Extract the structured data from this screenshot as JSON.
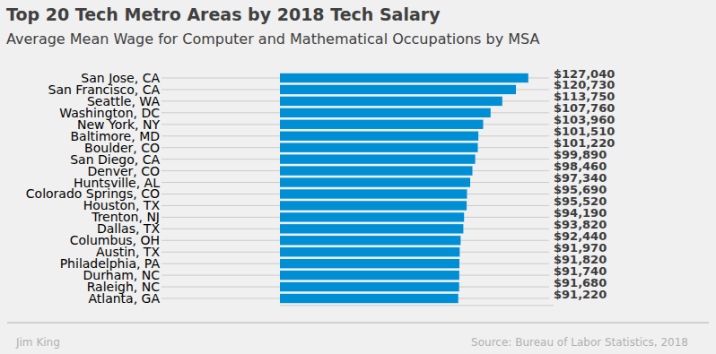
{
  "chart_data": {
    "type": "bar",
    "orientation": "horizontal",
    "title": "Top 20 Tech Metro Areas by 2018 Tech Salary",
    "subtitle": "Average Mean Wage for Computer and Mathematical Occupations by MSA",
    "annotations": [
      "Jim King",
      "Source: Bureau of Labor Statistics, 2018"
    ],
    "categories": [
      "San Jose, CA",
      "San Francisco, CA",
      "Seattle, WA",
      "Washington, DC",
      "New York, NY",
      "Baltimore, MD",
      "Boulder, CO",
      "San Diego, CA",
      "Denver, CO",
      "Huntsville, AL",
      "Colorado Springs, CO",
      "Houston, TX",
      "Trenton, NJ",
      "Dallas, TX",
      "Columbus, OH",
      "Austin, TX",
      "Philadelphia, PA",
      "Durham, NC",
      "Raleigh, NC",
      "Atlanta, GA"
    ],
    "values": [
      127040,
      120730,
      113750,
      107760,
      103960,
      101510,
      101220,
      99890,
      98460,
      97340,
      95690,
      95520,
      94190,
      93820,
      92440,
      91970,
      91820,
      91740,
      91680,
      91220
    ],
    "value_labels": [
      "$127,040",
      "$120,730",
      "$113,750",
      "$107,760",
      "$103,960",
      "$101,510",
      "$101,220",
      "$99,890",
      "$98,460",
      "$97,340",
      "$95,690",
      "$95,520",
      "$94,190",
      "$93,820",
      "$92,440",
      "$91,970",
      "$91,820",
      "$91,740",
      "$91,680",
      "$91,220"
    ],
    "color": "#008fd5",
    "xlim": [
      0,
      140000
    ],
    "grid": true,
    "data_labels": true,
    "tick_labels": "y"
  }
}
